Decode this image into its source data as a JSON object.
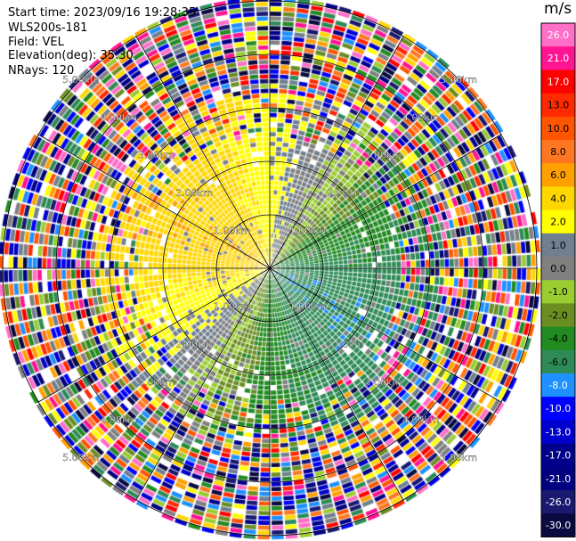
{
  "header": {
    "start_time": "Start time: 2023/09/16 19:28:35",
    "instrument": "WLS200s-181",
    "field": "Field: VEL",
    "elevation": "Elevation(deg): 35.30",
    "nrays": "NRays: 120"
  },
  "colorbar": {
    "unit": "m/s",
    "levels": [
      {
        "label": "26.0",
        "color": "#ff6ec7"
      },
      {
        "label": "21.0",
        "color": "#ff1493"
      },
      {
        "label": "17.0",
        "color": "#ff0000"
      },
      {
        "label": "13.0",
        "color": "#ff2a00"
      },
      {
        "label": "10.0",
        "color": "#ff5500"
      },
      {
        "label": "8.0",
        "color": "#ff7722"
      },
      {
        "label": "6.0",
        "color": "#ffa000"
      },
      {
        "label": "4.0",
        "color": "#ffd700"
      },
      {
        "label": "2.0",
        "color": "#ffff00"
      },
      {
        "label": "1.0",
        "color": "#708090"
      },
      {
        "label": "0.0",
        "color": "#808080"
      },
      {
        "label": "-1.0",
        "color": "#9acd32"
      },
      {
        "label": "-2.0",
        "color": "#6b8e23"
      },
      {
        "label": "-4.0",
        "color": "#228b22"
      },
      {
        "label": "-6.0",
        "color": "#2e8b57"
      },
      {
        "label": "-8.0",
        "color": "#1e90ff"
      },
      {
        "label": "-10.0",
        "color": "#0000ff"
      },
      {
        "label": "-13.0",
        "color": "#0000cd"
      },
      {
        "label": "-17.0",
        "color": "#00008b"
      },
      {
        "label": "-21.0",
        "color": "#000080"
      },
      {
        "label": "-26.0",
        "color": "#191970"
      },
      {
        "label": "-30.0",
        "color": "#0a0a40"
      }
    ]
  },
  "range_rings": [
    "1.00km",
    "2.00km",
    "3.00km",
    "4.00km",
    "5.00km"
  ],
  "spoke_count": 12
}
